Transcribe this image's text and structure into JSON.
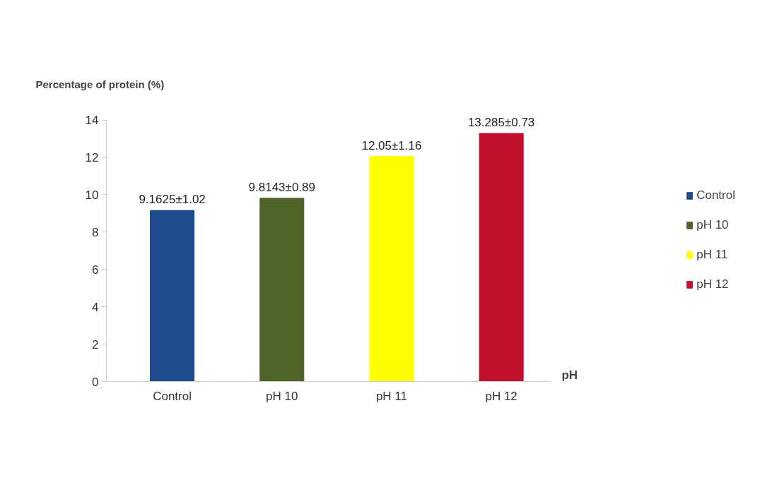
{
  "chart_data": {
    "type": "bar",
    "ylabel": "Percentage of protein (%)",
    "xlabel": "pH",
    "categories": [
      "Control",
      "pH 10",
      "pH 11",
      "pH 12"
    ],
    "series": [
      {
        "name": "Control",
        "color": "#1f4a8c",
        "values": [
          9.1625,
          null,
          null,
          null
        ],
        "value_labels": [
          "9.1625±1.02",
          null,
          null,
          null
        ]
      },
      {
        "name": "pH 10",
        "color": "#4f6228",
        "values": [
          null,
          9.8143,
          null,
          null
        ],
        "value_labels": [
          null,
          "9.8143±0.89",
          null,
          null
        ]
      },
      {
        "name": "pH 11",
        "color": "#ffff00",
        "values": [
          null,
          null,
          12.05,
          null
        ],
        "value_labels": [
          null,
          null,
          "12.05±1.16",
          null
        ]
      },
      {
        "name": "pH 12",
        "color": "#c0102e",
        "values": [
          null,
          null,
          null,
          13.285
        ],
        "value_labels": [
          null,
          null,
          null,
          "13.285±0.73"
        ]
      }
    ],
    "ylim": [
      0,
      14
    ],
    "yticks": [
      0,
      2,
      4,
      6,
      8,
      10,
      12,
      14
    ],
    "grid": false,
    "legend": "right"
  }
}
